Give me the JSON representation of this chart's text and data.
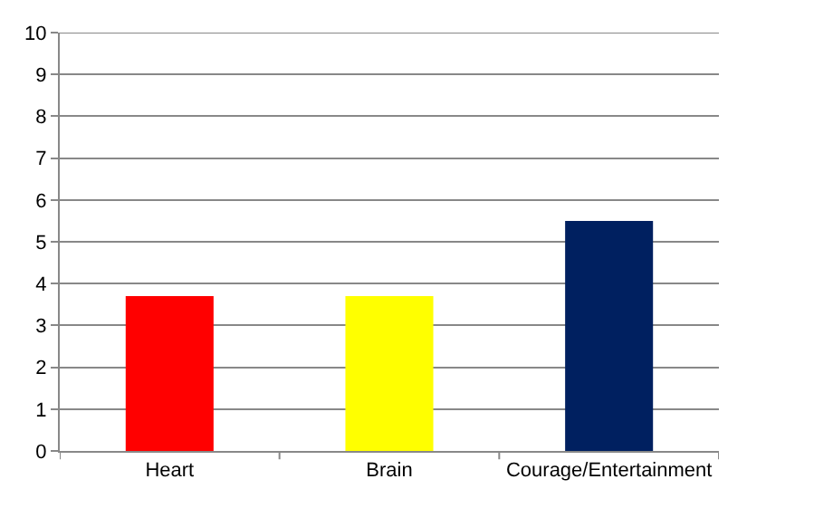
{
  "chart_data": {
    "type": "bar",
    "categories": [
      "Heart",
      "Brain",
      "Courage/Entertainment"
    ],
    "values": [
      3.7,
      3.7,
      5.5
    ],
    "colors": [
      "#ff0000",
      "#ffff00",
      "#002060"
    ],
    "ylim": [
      0,
      10
    ],
    "yticks": [
      0,
      1,
      2,
      3,
      4,
      5,
      6,
      7,
      8,
      9,
      10
    ],
    "grid": "y"
  }
}
